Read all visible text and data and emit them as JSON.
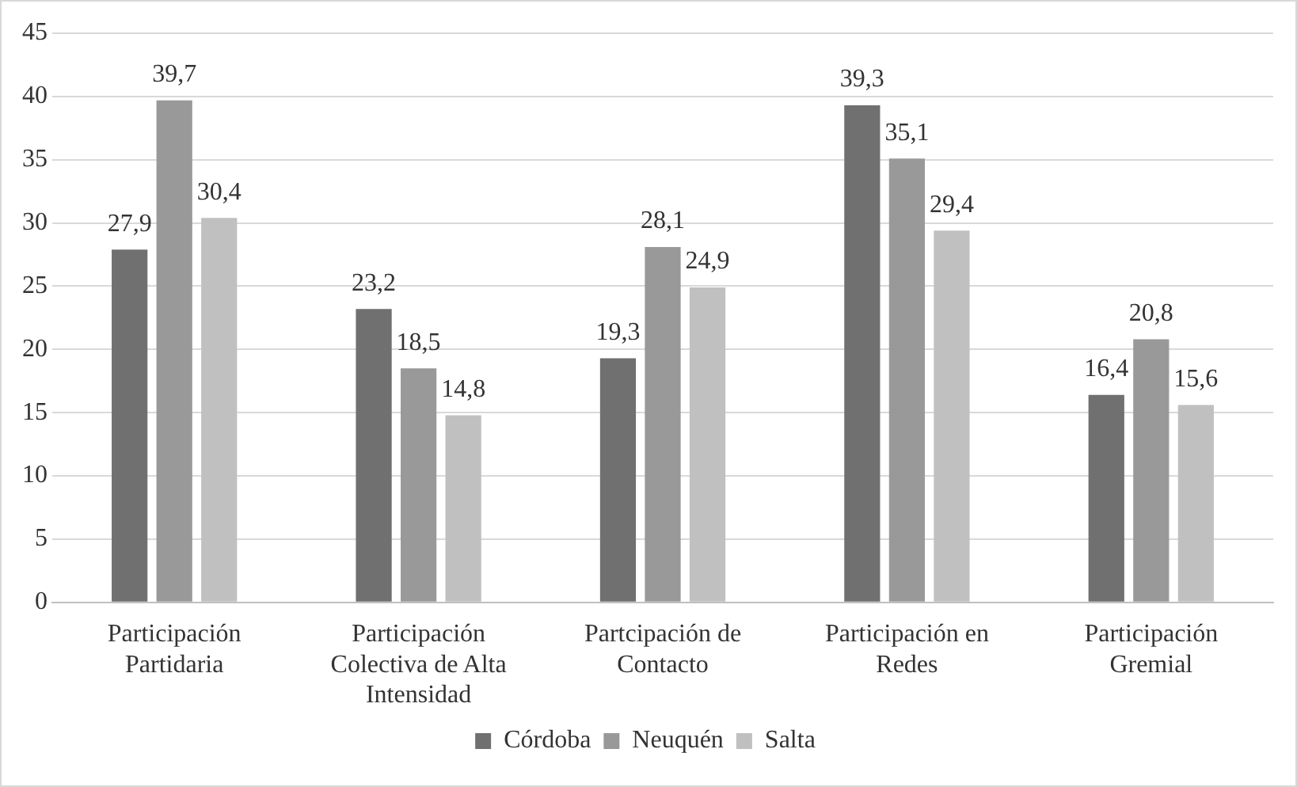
{
  "chart_data": {
    "type": "bar",
    "categories": [
      "Participación Partidaria",
      "Participación Colectiva de Alta Intensidad",
      "Partcipación de Contacto",
      "Participación en Redes",
      "Participación Gremial"
    ],
    "series": [
      {
        "name": "Córdoba",
        "color": "#707070",
        "values": [
          27.9,
          23.2,
          19.3,
          39.3,
          16.4
        ],
        "value_labels": [
          "27,9",
          "23,2",
          "19,3",
          "39,3",
          "16,4"
        ]
      },
      {
        "name": "Neuquén",
        "color": "#999999",
        "values": [
          39.7,
          18.5,
          28.1,
          35.1,
          20.8
        ],
        "value_labels": [
          "39,7",
          "18,5",
          "28,1",
          "35,1",
          "20,8"
        ]
      },
      {
        "name": "Salta",
        "color": "#c0c0c0",
        "values": [
          30.4,
          14.8,
          24.9,
          29.4,
          15.6
        ],
        "value_labels": [
          "30,4",
          "14,8",
          "24,9",
          "29,4",
          "15,6"
        ]
      }
    ],
    "ylim": [
      0,
      45
    ],
    "yticks": [
      0,
      5,
      10,
      15,
      20,
      25,
      30,
      35,
      40,
      45
    ],
    "grid": "y",
    "legend": "bottom"
  }
}
